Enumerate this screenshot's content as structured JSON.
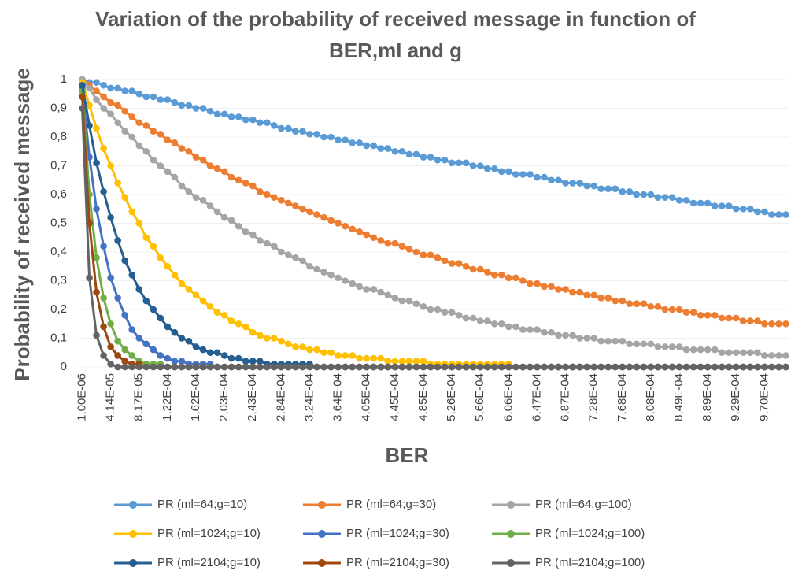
{
  "chart_data": {
    "type": "line",
    "title": "Variation of the probability of received message in function of BER,ml and g",
    "xlabel": "BER",
    "ylabel": "Probability of received message",
    "categories": [
      "1,00E-06",
      null,
      null,
      null,
      "4,14E-05",
      null,
      null,
      null,
      "8,17E-05",
      null,
      null,
      null,
      "1,22E-04",
      null,
      null,
      null,
      "1,62E-04",
      null,
      null,
      null,
      "2,03E-04",
      null,
      null,
      null,
      "2,43E-04",
      null,
      null,
      null,
      "2,84E-04",
      null,
      null,
      null,
      "3,24E-04",
      null,
      null,
      null,
      "3,64E-04",
      null,
      null,
      null,
      "4,05E-04",
      null,
      null,
      null,
      "4,45E-04",
      null,
      null,
      null,
      "4,85E-04",
      null,
      null,
      null,
      "5,26E-04",
      null,
      null,
      null,
      "5,66E-04",
      null,
      null,
      null,
      "6,06E-04",
      null,
      null,
      null,
      "6,47E-04",
      null,
      null,
      null,
      "6,87E-04",
      null,
      null,
      null,
      "7,28E-04",
      null,
      null,
      null,
      "7,68E-04",
      null,
      null,
      null,
      "8,08E-04",
      null,
      null,
      null,
      "8,49E-04",
      null,
      null,
      null,
      "8,89E-04",
      null,
      null,
      null,
      "9,29E-04",
      null,
      null,
      null,
      "9,70E-04",
      null,
      null,
      null
    ],
    "ylim": [
      0,
      1
    ],
    "yticks": [
      0,
      {
        "value": 0.1,
        "label": "0,1"
      },
      {
        "value": 0.2,
        "label": "0,2"
      },
      {
        "value": 0.3,
        "label": "0,3"
      },
      {
        "value": 0.4,
        "label": "0,4"
      },
      {
        "value": 0.5,
        "label": "0,5"
      },
      {
        "value": 0.6,
        "label": "0,6"
      },
      {
        "value": 0.7,
        "label": "0,7"
      },
      {
        "value": 0.8,
        "label": "0,8"
      },
      {
        "value": 0.9,
        "label": "0,9"
      },
      1
    ],
    "grid": true,
    "legend": "bottom",
    "series": [
      {
        "name": "PR (ml=64;g=10)",
        "color": "#5b9bd5",
        "values": [
          1.0,
          0.99,
          0.99,
          0.98,
          0.97,
          0.97,
          0.96,
          0.96,
          0.95,
          0.94,
          0.94,
          0.93,
          0.93,
          0.92,
          0.91,
          0.91,
          0.9,
          0.9,
          0.89,
          0.88,
          0.88,
          0.87,
          0.87,
          0.86,
          0.86,
          0.85,
          0.85,
          0.84,
          0.83,
          0.83,
          0.82,
          0.82,
          0.81,
          0.81,
          0.8,
          0.8,
          0.79,
          0.79,
          0.78,
          0.78,
          0.77,
          0.77,
          0.76,
          0.76,
          0.75,
          0.75,
          0.74,
          0.74,
          0.73,
          0.73,
          0.72,
          0.72,
          0.71,
          0.71,
          0.71,
          0.7,
          0.7,
          0.69,
          0.69,
          0.68,
          0.68,
          0.67,
          0.67,
          0.67,
          0.66,
          0.66,
          0.65,
          0.65,
          0.64,
          0.64,
          0.64,
          0.63,
          0.63,
          0.62,
          0.62,
          0.62,
          0.61,
          0.61,
          0.6,
          0.6,
          0.6,
          0.59,
          0.59,
          0.59,
          0.58,
          0.58,
          0.57,
          0.57,
          0.57,
          0.56,
          0.56,
          0.56,
          0.55,
          0.55,
          0.55,
          0.54,
          0.54,
          0.53,
          0.53,
          0.53
        ]
      },
      {
        "name": "PR (ml=64;g=30)",
        "color": "#ed7d31",
        "values": [
          1.0,
          0.98,
          0.96,
          0.94,
          0.92,
          0.91,
          0.89,
          0.87,
          0.85,
          0.84,
          0.82,
          0.81,
          0.79,
          0.78,
          0.76,
          0.75,
          0.73,
          0.72,
          0.7,
          0.69,
          0.68,
          0.66,
          0.65,
          0.64,
          0.63,
          0.61,
          0.6,
          0.59,
          0.58,
          0.57,
          0.56,
          0.55,
          0.54,
          0.53,
          0.52,
          0.51,
          0.5,
          0.49,
          0.48,
          0.47,
          0.46,
          0.45,
          0.44,
          0.43,
          0.43,
          0.42,
          0.41,
          0.4,
          0.39,
          0.39,
          0.38,
          0.37,
          0.36,
          0.36,
          0.35,
          0.34,
          0.34,
          0.33,
          0.32,
          0.32,
          0.31,
          0.31,
          0.3,
          0.29,
          0.29,
          0.28,
          0.28,
          0.27,
          0.27,
          0.26,
          0.26,
          0.25,
          0.25,
          0.24,
          0.24,
          0.23,
          0.23,
          0.22,
          0.22,
          0.22,
          0.21,
          0.21,
          0.2,
          0.2,
          0.2,
          0.19,
          0.19,
          0.18,
          0.18,
          0.18,
          0.17,
          0.17,
          0.17,
          0.16,
          0.16,
          0.16,
          0.15,
          0.15,
          0.15,
          0.15
        ]
      },
      {
        "name": "PR (ml=64;g=100)",
        "color": "#a5a5a5",
        "values": [
          1.0,
          0.97,
          0.93,
          0.9,
          0.88,
          0.85,
          0.82,
          0.8,
          0.77,
          0.75,
          0.72,
          0.7,
          0.68,
          0.66,
          0.63,
          0.61,
          0.59,
          0.58,
          0.56,
          0.54,
          0.52,
          0.51,
          0.49,
          0.47,
          0.46,
          0.44,
          0.43,
          0.42,
          0.4,
          0.39,
          0.38,
          0.37,
          0.35,
          0.34,
          0.33,
          0.32,
          0.31,
          0.3,
          0.29,
          0.28,
          0.27,
          0.27,
          0.26,
          0.25,
          0.24,
          0.23,
          0.23,
          0.22,
          0.21,
          0.2,
          0.2,
          0.19,
          0.19,
          0.18,
          0.17,
          0.17,
          0.16,
          0.16,
          0.15,
          0.15,
          0.14,
          0.14,
          0.13,
          0.13,
          0.13,
          0.12,
          0.12,
          0.11,
          0.11,
          0.11,
          0.1,
          0.1,
          0.1,
          0.09,
          0.09,
          0.09,
          0.09,
          0.08,
          0.08,
          0.08,
          0.08,
          0.07,
          0.07,
          0.07,
          0.07,
          0.06,
          0.06,
          0.06,
          0.06,
          0.06,
          0.05,
          0.05,
          0.05,
          0.05,
          0.05,
          0.05,
          0.04,
          0.04,
          0.04,
          0.04
        ]
      },
      {
        "name": "PR (ml=1024;g=10)",
        "color": "#ffc000",
        "values": [
          0.99,
          0.91,
          0.83,
          0.76,
          0.7,
          0.64,
          0.59,
          0.54,
          0.5,
          0.45,
          0.42,
          0.38,
          0.35,
          0.32,
          0.29,
          0.27,
          0.25,
          0.23,
          0.21,
          0.19,
          0.18,
          0.16,
          0.15,
          0.14,
          0.12,
          0.11,
          0.1,
          0.1,
          0.09,
          0.08,
          0.07,
          0.07,
          0.06,
          0.06,
          0.05,
          0.05,
          0.04,
          0.04,
          0.04,
          0.03,
          0.03,
          0.03,
          0.03,
          0.02,
          0.02,
          0.02,
          0.02,
          0.02,
          0.02,
          0.01,
          0.01,
          0.01,
          0.01,
          0.01,
          0.01,
          0.01,
          0.01,
          0.01,
          0.01,
          0.01,
          0.01,
          0,
          0,
          0,
          0,
          0,
          0,
          0,
          0,
          0,
          0,
          0,
          0,
          0,
          0,
          0,
          0,
          0,
          0,
          0,
          0,
          0,
          0,
          0,
          0,
          0,
          0,
          0,
          0,
          0,
          0,
          0,
          0,
          0,
          0,
          0,
          0,
          0,
          0,
          0
        ]
      },
      {
        "name": "PR (ml=1024;g=30)",
        "color": "#4472c4",
        "values": [
          0.97,
          0.73,
          0.55,
          0.42,
          0.31,
          0.24,
          0.18,
          0.13,
          0.1,
          0.08,
          0.06,
          0.04,
          0.03,
          0.02,
          0.02,
          0.01,
          0.01,
          0.01,
          0.01,
          0,
          0,
          0,
          0,
          0,
          0,
          0,
          0,
          0,
          0,
          0,
          0,
          0,
          0,
          0,
          0,
          0,
          0,
          0,
          0,
          0,
          0,
          0,
          0,
          0,
          0,
          0,
          0,
          0,
          0,
          0,
          0,
          0,
          0,
          0,
          0,
          0,
          0,
          0,
          0,
          0,
          0,
          0,
          0,
          0,
          0,
          0,
          0,
          0,
          0,
          0,
          0,
          0,
          0,
          0,
          0,
          0,
          0,
          0,
          0,
          0,
          0,
          0,
          0,
          0,
          0,
          0,
          0,
          0,
          0,
          0,
          0,
          0,
          0,
          0,
          0,
          0,
          0,
          0,
          0,
          0
        ]
      },
      {
        "name": "PR (ml=1024;g=100)",
        "color": "#70ad47",
        "values": [
          0.96,
          0.6,
          0.38,
          0.24,
          0.15,
          0.09,
          0.06,
          0.04,
          0.02,
          0.01,
          0.01,
          0.01,
          0,
          0,
          0,
          0,
          0,
          0,
          0,
          0,
          0,
          0,
          0,
          0,
          0,
          0,
          0,
          0,
          0,
          0,
          0,
          0,
          0,
          0,
          0,
          0,
          0,
          0,
          0,
          0,
          0,
          0,
          0,
          0,
          0,
          0,
          0,
          0,
          0,
          0,
          0,
          0,
          0,
          0,
          0,
          0,
          0,
          0,
          0,
          0,
          0,
          0,
          0,
          0,
          0,
          0,
          0,
          0,
          0,
          0,
          0,
          0,
          0,
          0,
          0,
          0,
          0,
          0,
          0,
          0,
          0,
          0,
          0,
          0,
          0,
          0,
          0,
          0,
          0,
          0,
          0,
          0,
          0,
          0,
          0,
          0,
          0,
          0,
          0,
          0
        ]
      },
      {
        "name": "PR (ml=2104;g=10)",
        "color": "#255e91",
        "values": [
          0.98,
          0.84,
          0.71,
          0.61,
          0.52,
          0.44,
          0.37,
          0.32,
          0.27,
          0.23,
          0.2,
          0.17,
          0.14,
          0.12,
          0.1,
          0.09,
          0.07,
          0.06,
          0.05,
          0.05,
          0.04,
          0.03,
          0.03,
          0.02,
          0.02,
          0.02,
          0.01,
          0.01,
          0.01,
          0.01,
          0.01,
          0.01,
          0.01,
          0,
          0,
          0,
          0,
          0,
          0,
          0,
          0,
          0,
          0,
          0,
          0,
          0,
          0,
          0,
          0,
          0,
          0,
          0,
          0,
          0,
          0,
          0,
          0,
          0,
          0,
          0,
          0,
          0,
          0,
          0,
          0,
          0,
          0,
          0,
          0,
          0,
          0,
          0,
          0,
          0,
          0,
          0,
          0,
          0,
          0,
          0,
          0,
          0,
          0,
          0,
          0,
          0,
          0,
          0,
          0,
          0,
          0,
          0,
          0,
          0,
          0,
          0,
          0,
          0,
          0,
          0
        ]
      },
      {
        "name": "PR (ml=2104;g=30)",
        "color": "#9e480e",
        "values": [
          0.94,
          0.5,
          0.26,
          0.14,
          0.07,
          0.04,
          0.02,
          0.01,
          0.01,
          0,
          0,
          0,
          0,
          0,
          0,
          0,
          0,
          0,
          0,
          0,
          0,
          0,
          0,
          0,
          0,
          0,
          0,
          0,
          0,
          0,
          0,
          0,
          0,
          0,
          0,
          0,
          0,
          0,
          0,
          0,
          0,
          0,
          0,
          0,
          0,
          0,
          0,
          0,
          0,
          0,
          0,
          0,
          0,
          0,
          0,
          0,
          0,
          0,
          0,
          0,
          0,
          0,
          0,
          0,
          0,
          0,
          0,
          0,
          0,
          0,
          0,
          0,
          0,
          0,
          0,
          0,
          0,
          0,
          0,
          0,
          0,
          0,
          0,
          0,
          0,
          0,
          0,
          0,
          0,
          0,
          0,
          0,
          0,
          0,
          0,
          0,
          0,
          0,
          0,
          0
        ]
      },
      {
        "name": "PR (ml=2104;g=100)",
        "color": "#636363",
        "values": [
          0.9,
          0.31,
          0.11,
          0.04,
          0.01,
          0,
          0,
          0,
          0,
          0,
          0,
          0,
          0,
          0,
          0,
          0,
          0,
          0,
          0,
          0,
          0,
          0,
          0,
          0,
          0,
          0,
          0,
          0,
          0,
          0,
          0,
          0,
          0,
          0,
          0,
          0,
          0,
          0,
          0,
          0,
          0,
          0,
          0,
          0,
          0,
          0,
          0,
          0,
          0,
          0,
          0,
          0,
          0,
          0,
          0,
          0,
          0,
          0,
          0,
          0,
          0,
          0,
          0,
          0,
          0,
          0,
          0,
          0,
          0,
          0,
          0,
          0,
          0,
          0,
          0,
          0,
          0,
          0,
          0,
          0,
          0,
          0,
          0,
          0,
          0,
          0,
          0,
          0,
          0,
          0,
          0,
          0,
          0,
          0,
          0,
          0,
          0,
          0,
          0,
          0
        ]
      }
    ]
  }
}
